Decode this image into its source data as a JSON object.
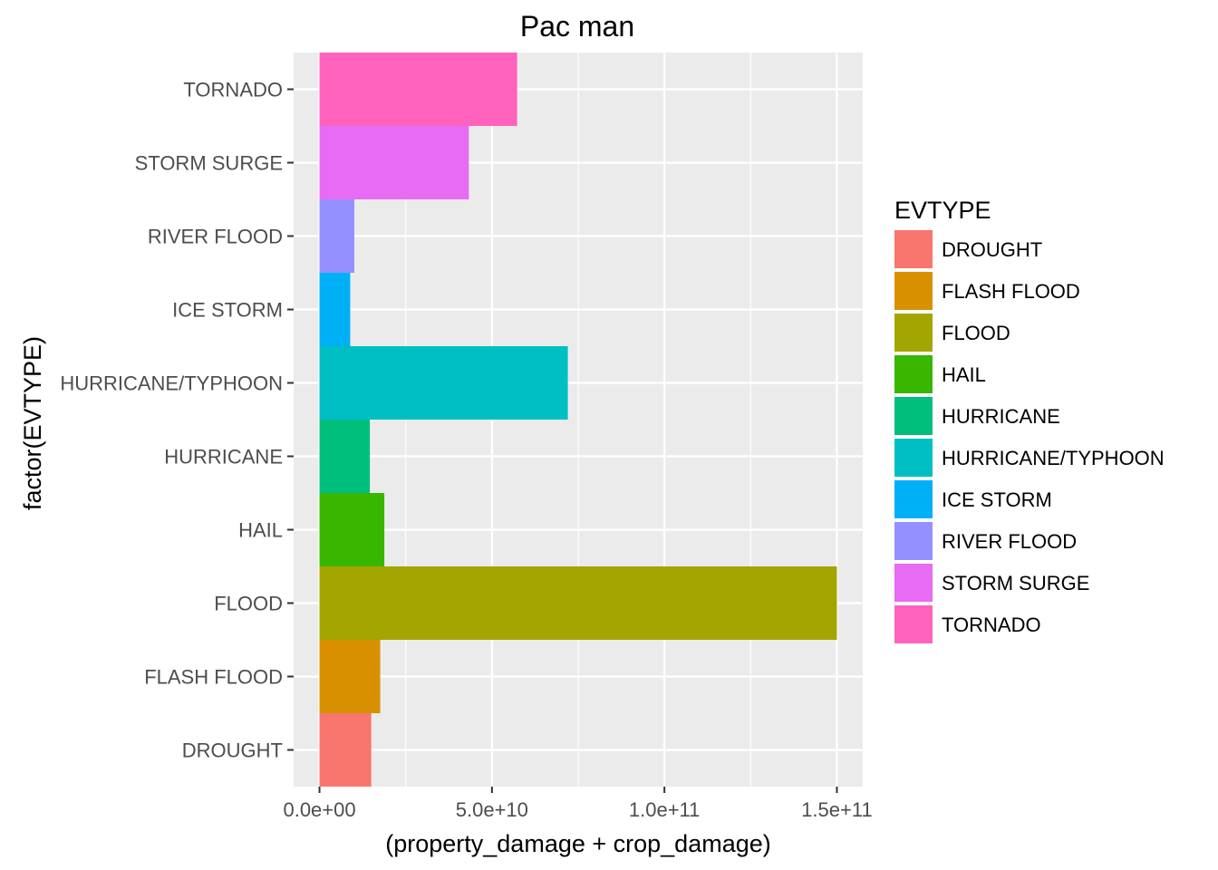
{
  "chart_data": {
    "type": "bar",
    "orientation": "horizontal",
    "title": "Pac man",
    "xlabel": "(property_damage + crop_damage)",
    "ylabel": "factor(EVTYPE)",
    "xlim": [
      -7500000000,
      157500000000
    ],
    "x_ticks": [
      0,
      50000000000,
      100000000000,
      150000000000
    ],
    "x_tick_labels": [
      "0.0e+00",
      "5.0e+10",
      "1.0e+11",
      "1.5e+11"
    ],
    "grid": true,
    "legend_title": "EVTYPE",
    "legend_position": "right",
    "categories": [
      "DROUGHT",
      "FLASH FLOOD",
      "FLOOD",
      "HAIL",
      "HURRICANE",
      "HURRICANE/TYPHOON",
      "ICE STORM",
      "RIVER FLOOD",
      "STORM SURGE",
      "TORNADO"
    ],
    "values": [
      15000000000,
      17600000000,
      150000000000,
      18800000000,
      14600000000,
      72000000000,
      8900000000,
      10100000000,
      43300000000,
      57300000000
    ],
    "colors": [
      "#F8766D",
      "#D89000",
      "#A3A500",
      "#39B600",
      "#00BF7D",
      "#00BFC4",
      "#00B0F6",
      "#9590FF",
      "#E76BF3",
      "#FF62BC"
    ]
  }
}
